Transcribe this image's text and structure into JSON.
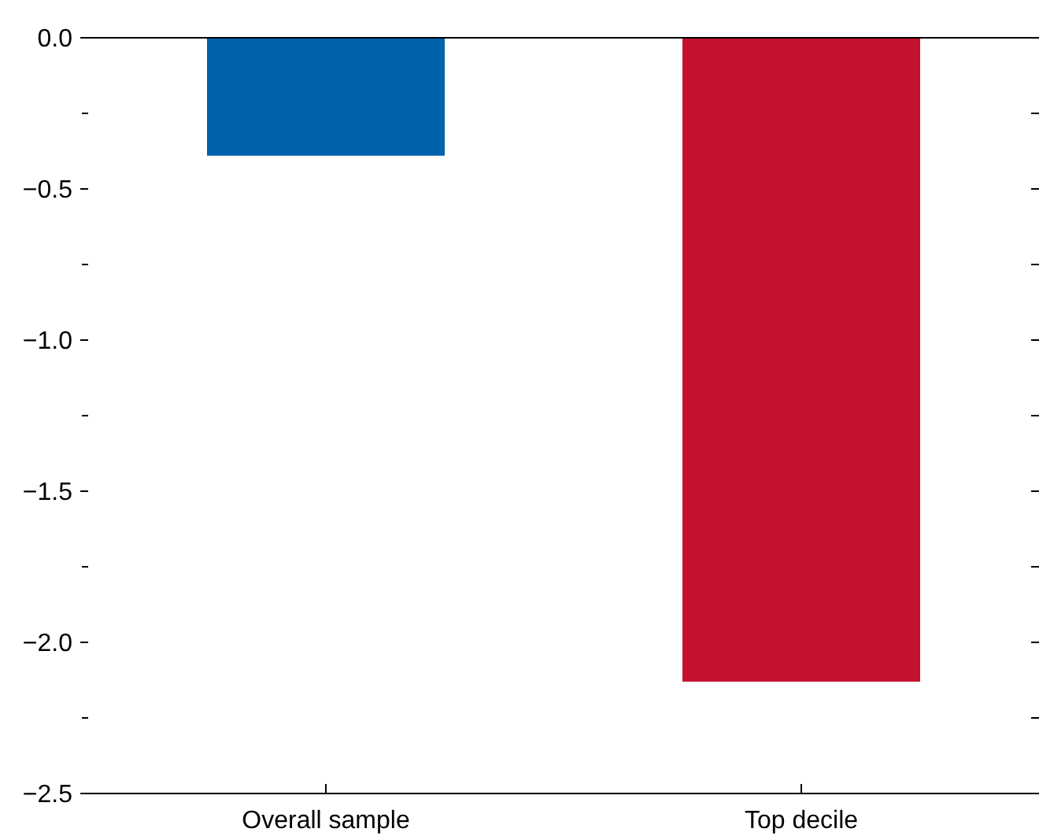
{
  "chart_data": {
    "type": "bar",
    "categories": [
      "Overall sample",
      "Top decile"
    ],
    "values": [
      -0.39,
      -2.13
    ],
    "colors": [
      "#0061ac",
      "#c41230"
    ],
    "ylim": [
      -2.5,
      0
    ],
    "yticks": [
      {
        "value": 0,
        "label": "0.0"
      },
      {
        "value": -0.25,
        "label": null
      },
      {
        "value": -0.5,
        "label": "−0.5"
      },
      {
        "value": -0.75,
        "label": null
      },
      {
        "value": -1,
        "label": "−1.0"
      },
      {
        "value": -1.25,
        "label": null
      },
      {
        "value": -1.5,
        "label": "−1.5"
      },
      {
        "value": -1.75,
        "label": null
      },
      {
        "value": -2,
        "label": "−2.0"
      },
      {
        "value": -2.25,
        "label": null
      },
      {
        "value": -2.5,
        "label": "−2.5"
      }
    ],
    "grid": false
  }
}
